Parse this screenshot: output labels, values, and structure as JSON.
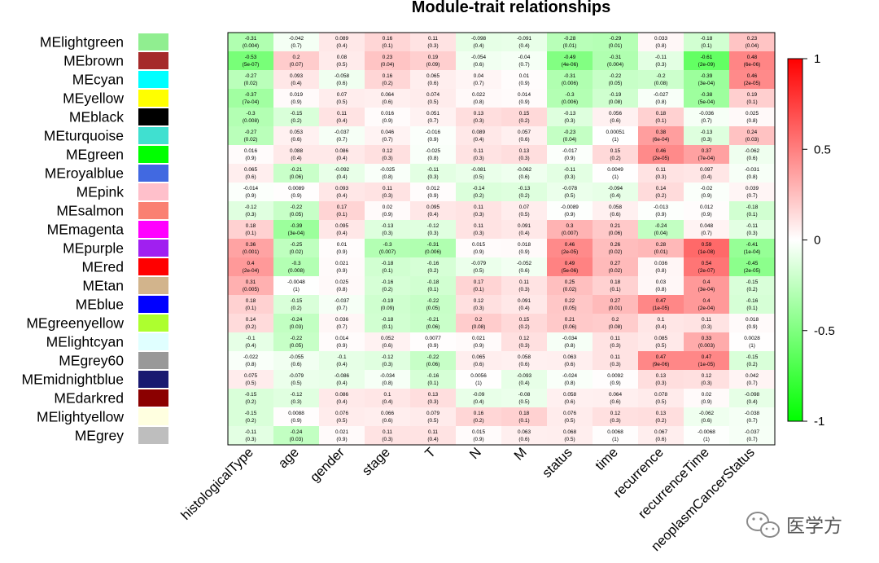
{
  "chart_data": {
    "type": "heatmap",
    "title": "Module-trait relationships",
    "rows": [
      "MElightgreen",
      "MEbrown",
      "MEcyan",
      "MEyellow",
      "MEblack",
      "MEturquoise",
      "MEgreen",
      "MEroyalblue",
      "MEpink",
      "MEsalmon",
      "MEmagenta",
      "MEpurple",
      "MEred",
      "MEtan",
      "MEblue",
      "MEgreenyellow",
      "MElightcyan",
      "MEgrey60",
      "MEmidnightblue",
      "MEdarkred",
      "MElightyellow",
      "MEgrey"
    ],
    "row_colors": [
      "#90EE90",
      "#A52A2A",
      "#00FFFF",
      "#FFFF00",
      "#000000",
      "#40E0D0",
      "#00FF00",
      "#4169E1",
      "#FFC0CB",
      "#FA8072",
      "#FF00FF",
      "#A020F0",
      "#FF0000",
      "#D2B48C",
      "#0000FF",
      "#ADFF2F",
      "#E0FFFF",
      "#999999",
      "#191970",
      "#8B0000",
      "#FFFFE0",
      "#BEBEBE"
    ],
    "columns": [
      "histologicalType",
      "age",
      "gender",
      "stage",
      "T",
      "N",
      "M",
      "status",
      "time",
      "recurrence",
      "recurrenceTime",
      "neoplasmCancerStatus"
    ],
    "values": [
      [
        -0.31,
        -0.042,
        0.089,
        0.16,
        0.11,
        -0.098,
        -0.091,
        -0.28,
        -0.29,
        0.033,
        -0.18,
        0.23
      ],
      [
        -0.53,
        0.2,
        0.08,
        0.23,
        0.19,
        -0.054,
        -0.04,
        -0.49,
        -0.31,
        -0.11,
        -0.61,
        0.48
      ],
      [
        -0.27,
        0.093,
        -0.058,
        0.16,
        0.065,
        0.04,
        0.01,
        -0.31,
        -0.22,
        -0.2,
        -0.39,
        0.46
      ],
      [
        -0.37,
        0.019,
        0.07,
        0.064,
        0.074,
        0.022,
        0.014,
        -0.3,
        -0.19,
        -0.027,
        -0.38,
        0.19
      ],
      [
        -0.3,
        -0.15,
        0.11,
        0.016,
        0.051,
        0.13,
        0.15,
        -0.13,
        0.056,
        0.18,
        -0.036,
        0.025
      ],
      [
        -0.27,
        0.053,
        -0.037,
        0.046,
        -0.016,
        0.089,
        0.057,
        -0.23,
        0.00051,
        0.38,
        -0.13,
        0.24
      ],
      [
        0.016,
        0.088,
        0.086,
        0.12,
        -0.025,
        0.11,
        0.13,
        -0.017,
        0.15,
        0.46,
        0.37,
        -0.062
      ],
      [
        0.065,
        -0.21,
        -0.092,
        -0.025,
        -0.11,
        -0.081,
        -0.062,
        -0.11,
        0.0049,
        0.11,
        0.097,
        -0.031
      ],
      [
        -0.014,
        0.0089,
        0.093,
        0.11,
        0.012,
        -0.14,
        -0.13,
        -0.078,
        -0.094,
        0.14,
        -0.02,
        0.039
      ],
      [
        -0.12,
        -0.22,
        0.17,
        0.02,
        0.095,
        0.11,
        0.07,
        -0.0089,
        0.058,
        -0.013,
        0.012,
        -0.18
      ],
      [
        0.18,
        -0.39,
        0.095,
        -0.13,
        -0.12,
        0.11,
        0.091,
        0.3,
        0.21,
        -0.24,
        0.048,
        -0.11
      ],
      [
        0.36,
        -0.25,
        0.01,
        -0.3,
        -0.31,
        0.015,
        0.018,
        0.46,
        0.26,
        0.28,
        0.59,
        -0.41
      ],
      [
        0.4,
        -0.3,
        0.021,
        -0.18,
        -0.16,
        -0.079,
        -0.052,
        0.49,
        0.27,
        0.036,
        0.54,
        -0.45
      ],
      [
        0.31,
        -0.0048,
        0.025,
        -0.16,
        -0.18,
        0.17,
        0.11,
        0.25,
        0.18,
        0.03,
        0.4,
        -0.15
      ],
      [
        0.18,
        -0.15,
        -0.037,
        -0.19,
        -0.22,
        0.12,
        0.091,
        0.22,
        0.27,
        0.47,
        0.4,
        -0.16
      ],
      [
        0.14,
        -0.24,
        0.036,
        -0.18,
        -0.21,
        0.2,
        0.15,
        0.21,
        0.2,
        0.1,
        0.11,
        0.018
      ],
      [
        -0.1,
        -0.22,
        0.014,
        0.052,
        0.0077,
        0.021,
        0.12,
        -0.034,
        0.11,
        0.085,
        0.33,
        0.0028
      ],
      [
        -0.022,
        -0.055,
        -0.1,
        -0.12,
        -0.22,
        0.065,
        0.058,
        0.063,
        0.11,
        0.47,
        0.47,
        -0.15
      ],
      [
        0.075,
        -0.079,
        -0.086,
        -0.034,
        -0.16,
        0.0056,
        -0.093,
        -0.024,
        0.0092,
        0.13,
        0.12,
        0.042
      ],
      [
        -0.15,
        -0.12,
        0.086,
        0.1,
        0.13,
        -0.09,
        -0.08,
        0.058,
        0.064,
        0.078,
        0.02,
        -0.098
      ],
      [
        -0.15,
        0.0088,
        0.076,
        0.066,
        0.079,
        0.16,
        0.18,
        0.076,
        0.12,
        0.13,
        -0.062,
        -0.038
      ],
      [
        -0.11,
        -0.24,
        0.021,
        0.11,
        0.11,
        0.015,
        0.063,
        0.068,
        0.0068,
        0.067,
        -0.0068,
        -0.037
      ]
    ],
    "pvalues": [
      [
        "0.004",
        "0.7",
        "0.4",
        "0.1",
        "0.3",
        "0.4",
        "0.4",
        "0.01",
        "0.01",
        "0.8",
        "0.1",
        "0.04"
      ],
      [
        "5e-07",
        "0.07",
        "0.5",
        "0.04",
        "0.09",
        "0.6",
        "0.7",
        "4e-06",
        "0.004",
        "0.3",
        "2e-09",
        "6e-06"
      ],
      [
        "0.02",
        "0.4",
        "0.6",
        "0.2",
        "0.6",
        "0.7",
        "0.9",
        "0.006",
        "0.05",
        "0.08",
        "3e-04",
        "2e-05"
      ],
      [
        "7e-04",
        "0.9",
        "0.5",
        "0.6",
        "0.5",
        "0.8",
        "0.9",
        "0.006",
        "0.08",
        "0.8",
        "5e-04",
        "0.1"
      ],
      [
        "0.008",
        "0.2",
        "0.4",
        "0.9",
        "0.7",
        "0.3",
        "0.2",
        "0.3",
        "0.6",
        "0.1",
        "0.7",
        "0.8"
      ],
      [
        "0.02",
        "0.6",
        "0.7",
        "0.7",
        "0.9",
        "0.4",
        "0.6",
        "0.04",
        "1",
        "6e-04",
        "0.3",
        "0.03"
      ],
      [
        "0.9",
        "0.4",
        "0.4",
        "0.3",
        "0.8",
        "0.3",
        "0.3",
        "0.9",
        "0.2",
        "2e-05",
        "7e-04",
        "0.6"
      ],
      [
        "0.6",
        "0.06",
        "0.4",
        "0.8",
        "0.3",
        "0.5",
        "0.6",
        "0.3",
        "1",
        "0.3",
        "0.4",
        "0.8"
      ],
      [
        "0.9",
        "0.9",
        "0.4",
        "0.3",
        "0.9",
        "0.2",
        "0.2",
        "0.5",
        "0.4",
        "0.2",
        "0.9",
        "0.7"
      ],
      [
        "0.3",
        "0.05",
        "0.1",
        "0.9",
        "0.4",
        "0.3",
        "0.5",
        "0.9",
        "0.6",
        "0.9",
        "0.9",
        "0.1"
      ],
      [
        "0.1",
        "3e-04",
        "0.4",
        "0.3",
        "0.3",
        "0.3",
        "0.4",
        "0.007",
        "0.06",
        "0.04",
        "0.7",
        "0.3"
      ],
      [
        "0.001",
        "0.02",
        "0.9",
        "0.007",
        "0.006",
        "0.9",
        "0.9",
        "2e-05",
        "0.02",
        "0.01",
        "1e-08",
        "1e-04"
      ],
      [
        "2e-04",
        "0.008",
        "0.9",
        "0.1",
        "0.2",
        "0.5",
        "0.6",
        "5e-06",
        "0.02",
        "0.8",
        "2e-07",
        "2e-05"
      ],
      [
        "0.005",
        "1",
        "0.8",
        "0.2",
        "0.1",
        "0.1",
        "0.3",
        "0.02",
        "0.1",
        "0.8",
        "3e-04",
        "0.2"
      ],
      [
        "0.1",
        "0.2",
        "0.7",
        "0.09",
        "0.05",
        "0.3",
        "0.4",
        "0.05",
        "0.01",
        "1e-05",
        "2e-04",
        "0.1"
      ],
      [
        "0.2",
        "0.03",
        "0.7",
        "0.1",
        "0.06",
        "0.08",
        "0.2",
        "0.06",
        "0.08",
        "0.4",
        "0.3",
        "0.9"
      ],
      [
        "0.4",
        "0.05",
        "0.9",
        "0.6",
        "0.9",
        "0.9",
        "0.3",
        "0.8",
        "0.3",
        "0.5",
        "0.003",
        "1"
      ],
      [
        "0.8",
        "0.6",
        "0.4",
        "0.3",
        "0.06",
        "0.6",
        "0.6",
        "0.6",
        "0.3",
        "9e-06",
        "1e-05",
        "0.2"
      ],
      [
        "0.5",
        "0.5",
        "0.4",
        "0.8",
        "0.1",
        "1",
        "0.4",
        "0.8",
        "0.9",
        "0.3",
        "0.3",
        "0.7"
      ],
      [
        "0.2",
        "0.3",
        "0.4",
        "0.4",
        "0.3",
        "0.4",
        "0.5",
        "0.6",
        "0.6",
        "0.5",
        "0.9",
        "0.4"
      ],
      [
        "0.2",
        "0.9",
        "0.5",
        "0.6",
        "0.5",
        "0.2",
        "0.1",
        "0.5",
        "0.3",
        "0.2",
        "0.6",
        "0.7"
      ],
      [
        "0.3",
        "0.03",
        "0.9",
        "0.3",
        "0.4",
        "0.9",
        "0.6",
        "0.5",
        "1",
        "0.6",
        "1",
        "0.7"
      ]
    ],
    "colorbar": {
      "ticks": [
        1,
        0.5,
        0,
        -0.5,
        -1
      ],
      "range": [
        -1,
        1
      ],
      "high_color": "#FF0000",
      "mid_color": "#FFFFFF",
      "low_color": "#00FF00"
    }
  },
  "watermark": {
    "icon": "wechat-icon",
    "text": "医学方"
  }
}
